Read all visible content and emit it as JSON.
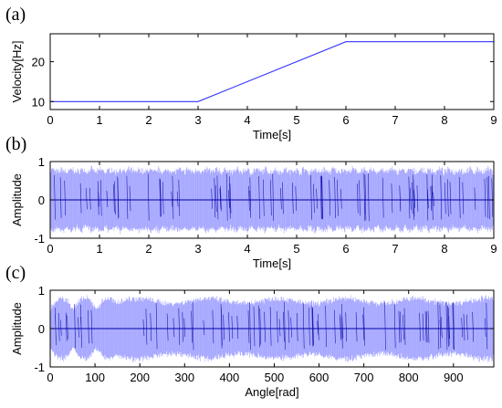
{
  "chart_data": [
    {
      "type": "line",
      "panel": "(a)",
      "xlabel": "Time[s]",
      "ylabel": "Velocity[Hz]",
      "xlim": [
        0,
        9
      ],
      "ylim": [
        8,
        27
      ],
      "xticks": [
        0,
        1,
        2,
        3,
        4,
        5,
        6,
        7,
        8,
        9
      ],
      "yticks": [
        10,
        20
      ],
      "grid": false,
      "color": "#3333ff",
      "series": [
        {
          "x": [
            0,
            3,
            6,
            9
          ],
          "y": [
            10,
            10,
            25,
            25
          ]
        }
      ]
    },
    {
      "type": "line",
      "panel": "(b)",
      "xlabel": "Time[s]",
      "ylabel": "Amplitude",
      "xlim": [
        0,
        9
      ],
      "ylim": [
        -1,
        1
      ],
      "xticks": [
        0,
        1,
        2,
        3,
        4,
        5,
        6,
        7,
        8,
        9
      ],
      "yticks": [
        -1,
        0,
        1
      ],
      "grid": false,
      "color": "#3333ff",
      "signal": "dense oscillating vibration signal, amplitude about ±0.85, frequency rising from 3 s to 6 s"
    },
    {
      "type": "line",
      "panel": "(c)",
      "xlabel": "Angle[rad]",
      "ylabel": "Amplitude",
      "xlim": [
        0,
        990
      ],
      "ylim": [
        -1,
        1
      ],
      "xticks": [
        0,
        100,
        200,
        300,
        400,
        500,
        600,
        700,
        800,
        900
      ],
      "yticks": [
        -1,
        0,
        1
      ],
      "grid": false,
      "color": "#3333ff",
      "signal": "same vibration signal resampled in the angle domain, amplitude about ±0.85"
    }
  ]
}
